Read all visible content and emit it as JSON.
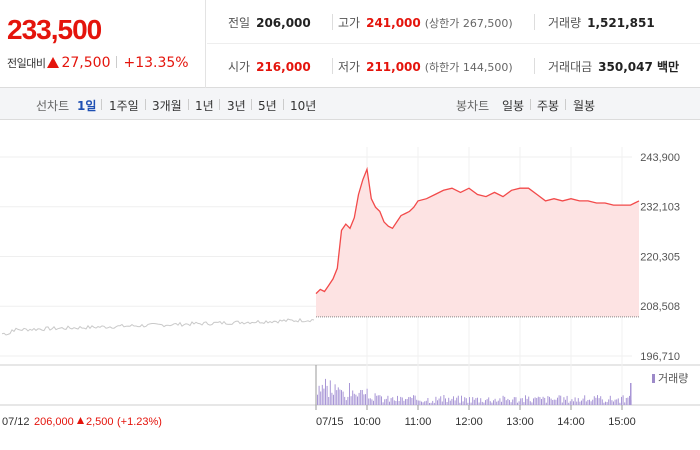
{
  "quote": {
    "price": "233,500",
    "change_label": "전일대비",
    "change_amount": "27,500",
    "change_pct": "+13.35%",
    "stats": {
      "prev_close_label": "전일",
      "prev_close": "206,000",
      "high_label": "고가",
      "high": "241,000",
      "upper_limit": "(상한가 267,500)",
      "volume_label": "거래량",
      "volume": "1,521,851",
      "open_label": "시가",
      "open": "216,000",
      "low_label": "저가",
      "low": "211,000",
      "lower_limit": "(하한가 144,500)",
      "turnover_label": "거래대금",
      "turnover": "350,047 백만"
    }
  },
  "toolbar": {
    "line_label": "선차트",
    "line_periods": [
      "1일",
      "1주일",
      "3개월",
      "1년",
      "3년",
      "5년",
      "10년"
    ],
    "active_period": "1일",
    "candle_label": "봉차트",
    "candle_periods": [
      "일봉",
      "주봉",
      "월봉"
    ]
  },
  "chart_data": {
    "type": "line",
    "y_ticks": [
      "243,900",
      "232,103",
      "220,305",
      "208,508",
      "196,710"
    ],
    "ylim": [
      196710,
      243900
    ],
    "prev_day": {
      "date_label": "07/12",
      "close_label": "206,000",
      "change_label": "2,500",
      "change_pct_label": "(+1.23%)"
    },
    "today": {
      "date_label": "07/15",
      "x_ticks": [
        "10:00",
        "11:00",
        "12:00",
        "13:00",
        "14:00",
        "15:00"
      ],
      "baseline": 206000
    },
    "volume_legend": "거래량",
    "series": [
      {
        "x": [
          "09:00",
          "09:05",
          "09:10",
          "09:15",
          "09:20",
          "09:25",
          "09:30",
          "09:35",
          "09:40",
          "09:45",
          "09:50",
          "09:55",
          "10:00",
          "10:05",
          "10:10",
          "10:15",
          "10:20",
          "10:25",
          "10:30",
          "10:35",
          "10:40",
          "10:45",
          "10:50",
          "10:55",
          "11:00",
          "11:10",
          "11:20",
          "11:30",
          "11:40",
          "11:50",
          "12:00",
          "12:10",
          "12:20",
          "12:30",
          "12:40",
          "12:50",
          "13:00",
          "13:10",
          "13:20",
          "13:30",
          "13:40",
          "13:50",
          "14:00",
          "14:10",
          "14:20",
          "14:30",
          "14:40",
          "14:50",
          "15:00",
          "15:10",
          "15:20"
        ],
        "values": [
          211500,
          212500,
          212000,
          213500,
          215000,
          217500,
          226500,
          228000,
          227000,
          229500,
          235000,
          238500,
          241000,
          234000,
          232000,
          231000,
          228500,
          227500,
          227000,
          228500,
          230000,
          230500,
          231000,
          232000,
          233500,
          234000,
          235000,
          236000,
          236500,
          235500,
          236500,
          235000,
          234500,
          235500,
          234500,
          236000,
          236500,
          236500,
          235000,
          233500,
          234000,
          233500,
          234000,
          233500,
          233500,
          233000,
          233000,
          232500,
          232500,
          232500,
          233500
        ]
      }
    ]
  }
}
